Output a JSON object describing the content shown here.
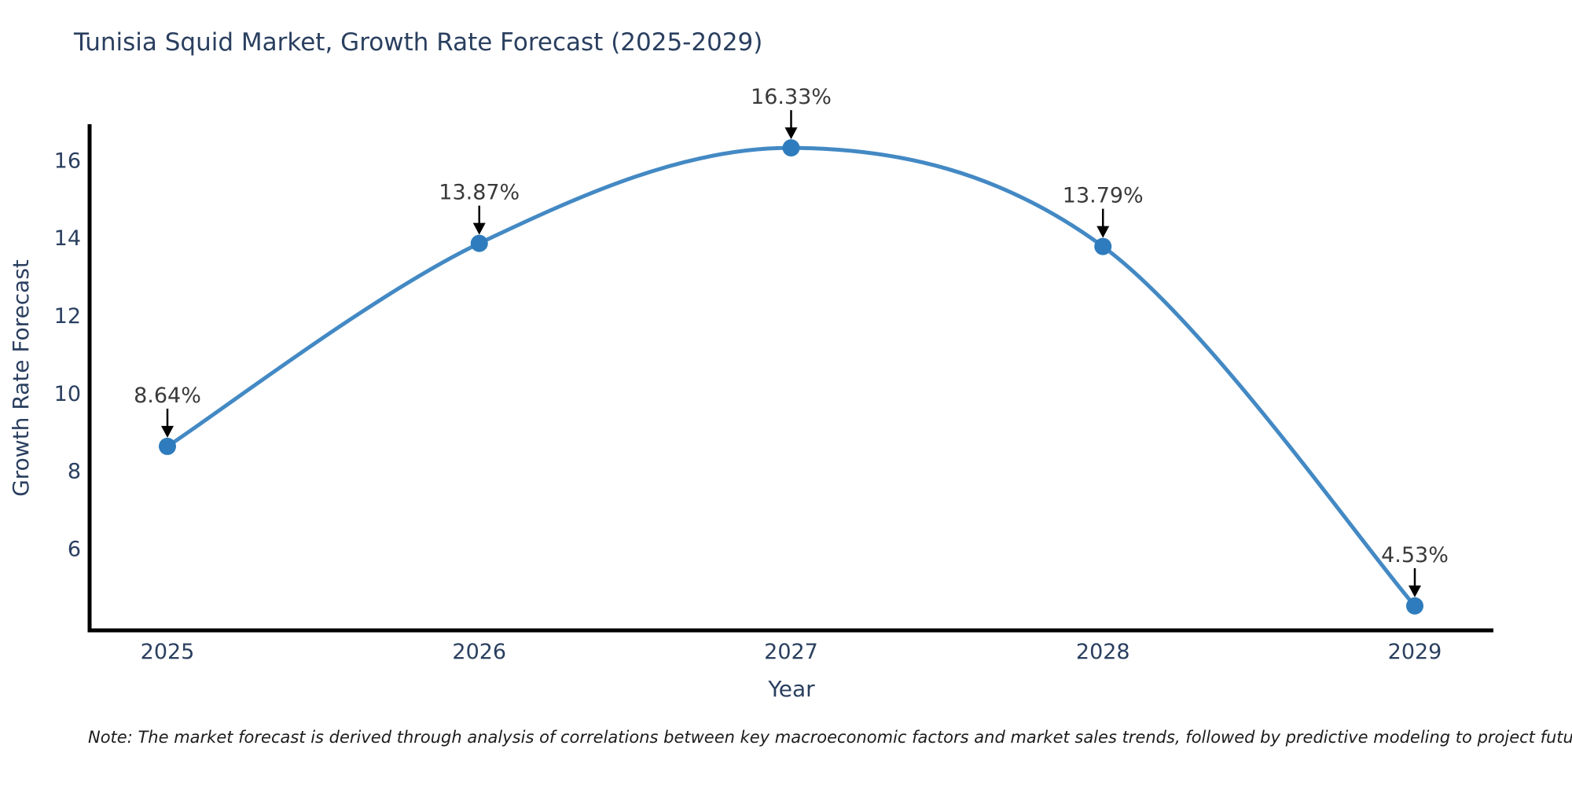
{
  "figure": {
    "title": "Tunisia Squid Market, Growth Rate Forecast (2025-2029)",
    "note": "Note: The market forecast is derived through analysis of correlations between key macroeconomic factors and market sales trends, followed by predictive modeling to project future sales"
  },
  "chart_data": {
    "type": "line",
    "title": "Tunisia Squid Market, Growth Rate Forecast (2025-2029)",
    "xlabel": "Year",
    "ylabel": "Growth Rate Forecast",
    "categories": [
      "2025",
      "2026",
      "2027",
      "2028",
      "2029"
    ],
    "values": [
      8.64,
      13.87,
      16.33,
      13.79,
      4.53
    ],
    "point_labels": [
      "8.64%",
      "13.87%",
      "16.33%",
      "13.79%",
      "4.53%"
    ],
    "yticks": [
      6,
      8,
      10,
      12,
      14,
      16
    ],
    "ylim": [
      3.9,
      16.9
    ],
    "grid": false,
    "legend": "none",
    "smooth": true,
    "marker": "circle",
    "annotation_style": "value label with downward black arrow above each point",
    "colors": {
      "line": "#4389c4",
      "marker": "#2e7cbd",
      "arrow": "#000000",
      "axis": "#000000",
      "title_text": "#2a3f5f",
      "tick_text": "#2a3f5f",
      "annotation_text": "#3a3a3a",
      "background": "#ffffff"
    }
  }
}
